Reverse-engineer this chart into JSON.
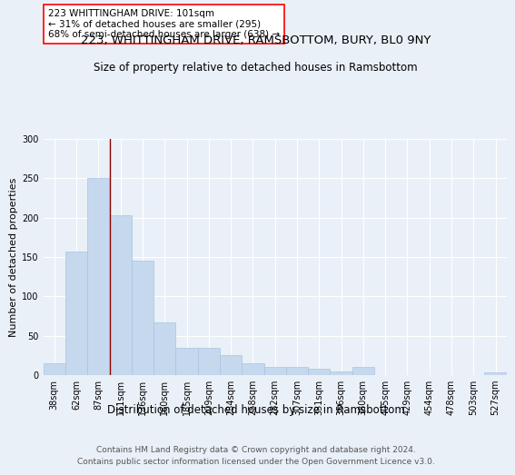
{
  "title": "223, WHITTINGHAM DRIVE, RAMSBOTTOM, BURY, BL0 9NY",
  "subtitle": "Size of property relative to detached houses in Ramsbottom",
  "xlabel": "Distribution of detached houses by size in Ramsbottom",
  "ylabel": "Number of detached properties",
  "categories": [
    "38sqm",
    "62sqm",
    "87sqm",
    "111sqm",
    "136sqm",
    "160sqm",
    "185sqm",
    "209sqm",
    "234sqm",
    "258sqm",
    "282sqm",
    "307sqm",
    "331sqm",
    "356sqm",
    "380sqm",
    "405sqm",
    "429sqm",
    "454sqm",
    "478sqm",
    "503sqm",
    "527sqm"
  ],
  "values": [
    15,
    157,
    250,
    203,
    145,
    67,
    35,
    35,
    25,
    15,
    10,
    10,
    8,
    5,
    10,
    0,
    0,
    0,
    0,
    0,
    3
  ],
  "bar_color": "#c5d8ed",
  "bar_edgecolor": "#a8c4e0",
  "vline_index": 2.5,
  "vline_color": "#8b0000",
  "annotation_text": "223 WHITTINGHAM DRIVE: 101sqm\n← 31% of detached houses are smaller (295)\n68% of semi-detached houses are larger (638) →",
  "annotation_box_color": "white",
  "annotation_box_edgecolor": "red",
  "ylim": [
    0,
    300
  ],
  "yticks": [
    0,
    50,
    100,
    150,
    200,
    250,
    300
  ],
  "background_color": "#eaf0f8",
  "grid_color": "white",
  "footer": "Contains HM Land Registry data © Crown copyright and database right 2024.\nContains public sector information licensed under the Open Government Licence v3.0.",
  "title_fontsize": 9.5,
  "subtitle_fontsize": 8.5,
  "xlabel_fontsize": 8.5,
  "ylabel_fontsize": 8,
  "tick_fontsize": 7,
  "annotation_fontsize": 7.5,
  "footer_fontsize": 6.5
}
